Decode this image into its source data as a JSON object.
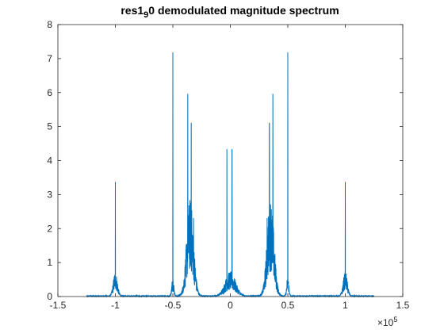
{
  "chart_data": {
    "type": "line",
    "title": {
      "prefix": "res1",
      "subscript": "9",
      "suffix": "0 demodulated magnitude spectrum"
    },
    "xlabel": "",
    "ylabel": "",
    "xlim": [
      -150000,
      150000
    ],
    "ylim": [
      0,
      8
    ],
    "x_tick_labels": [
      "-1.5",
      "-1",
      "-0.5",
      "0",
      "0.5",
      "1",
      "1.5"
    ],
    "x_tick_values": [
      -150000,
      -100000,
      -50000,
      0,
      50000,
      100000,
      150000
    ],
    "x_exponent": {
      "base": "×10",
      "power": "5"
    },
    "y_tick_labels": [
      "0",
      "1",
      "2",
      "3",
      "4",
      "5",
      "6",
      "7",
      "8"
    ],
    "y_tick_values": [
      0,
      1,
      2,
      3,
      4,
      5,
      6,
      7,
      8
    ],
    "grid": false,
    "line_color": "#0072BD",
    "data_range_x": [
      -125000,
      125000
    ],
    "peaks": [
      {
        "x": -100000,
        "y": 3.37
      },
      {
        "x": -50000,
        "y": 7.18
      },
      {
        "x": -37000,
        "y": 5.95
      },
      {
        "x": -34000,
        "y": 5.1
      },
      {
        "x": -32000,
        "y": 2.3
      },
      {
        "x": -3000,
        "y": 4.32
      },
      {
        "x": 1500,
        "y": 4.32
      },
      {
        "x": 32000,
        "y": 2.3
      },
      {
        "x": 34000,
        "y": 5.1
      },
      {
        "x": 37000,
        "y": 5.95
      },
      {
        "x": 50000,
        "y": 7.18
      },
      {
        "x": 100000,
        "y": 3.37
      }
    ]
  }
}
